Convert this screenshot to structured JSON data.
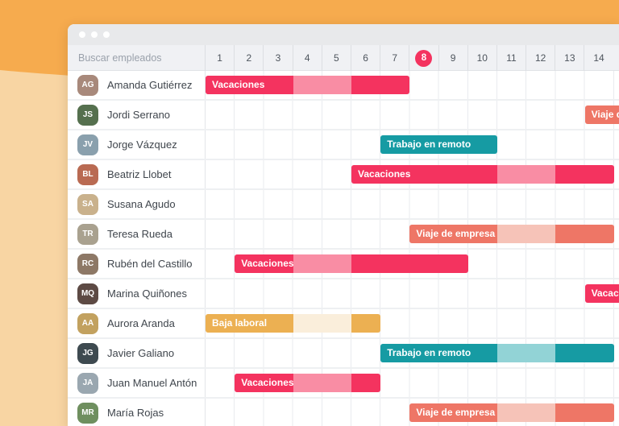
{
  "search": {
    "placeholder": "Buscar empleados"
  },
  "header": {
    "days": [
      "1",
      "2",
      "3",
      "4",
      "5",
      "6",
      "7",
      "8",
      "9",
      "10",
      "11",
      "12",
      "13",
      "14"
    ],
    "current_day": "8"
  },
  "legend_types": {
    "vacaciones": {
      "label": "Vacaciones",
      "dark": "#f4335f",
      "light": "#f98da4"
    },
    "viaje_de_empresa": {
      "label": "Viaje de empresa",
      "dark": "#ee7666",
      "light": "#f6c3b8"
    },
    "trabajo_en_remoto": {
      "label": "Trabajo en remoto",
      "dark": "#169ba3",
      "light": "#92d3d6"
    },
    "baja_laboral": {
      "label": "Baja laboral",
      "dark": "#ecb052",
      "light": "#faeedb"
    }
  },
  "colors": {
    "background_top": "#f6ab4e",
    "background_bottom": "#f8d5a3",
    "current_day_badge": "#f4335f"
  },
  "employees": [
    {
      "name": "Amanda Gutiérrez",
      "bar": {
        "type": "vacaciones",
        "label": "Vacaciones",
        "segments": [
          {
            "from": 1,
            "to": 3,
            "shade": "dark"
          },
          {
            "from": 4,
            "to": 5,
            "shade": "light"
          },
          {
            "from": 6,
            "to": 7,
            "shade": "dark"
          }
        ]
      }
    },
    {
      "name": "Jordi Serrano",
      "bar": {
        "type": "viaje_de_empresa",
        "label": "Viaje de empresa",
        "segments": [
          {
            "from": 14,
            "to": 15,
            "shade": "dark"
          }
        ]
      }
    },
    {
      "name": "Jorge Vázquez",
      "bar": {
        "type": "trabajo_en_remoto",
        "label": "Trabajo en remoto",
        "segments": [
          {
            "from": 7,
            "to": 10,
            "shade": "dark"
          }
        ]
      }
    },
    {
      "name": "Beatriz Llobet",
      "bar": {
        "type": "vacaciones",
        "label": "Vacaciones",
        "segments": [
          {
            "from": 6,
            "to": 10,
            "shade": "dark"
          },
          {
            "from": 11,
            "to": 12,
            "shade": "light"
          },
          {
            "from": 13,
            "to": 14,
            "shade": "dark"
          }
        ]
      }
    },
    {
      "name": "Susana Agudo",
      "bar": null
    },
    {
      "name": "Teresa Rueda",
      "bar": {
        "type": "viaje_de_empresa",
        "label": "Viaje de empresa",
        "segments": [
          {
            "from": 8,
            "to": 10,
            "shade": "dark"
          },
          {
            "from": 11,
            "to": 12,
            "shade": "light"
          },
          {
            "from": 13,
            "to": 14,
            "shade": "dark"
          }
        ]
      }
    },
    {
      "name": "Rubén del Castillo",
      "bar": {
        "type": "vacaciones",
        "label": "Vacaciones",
        "segments": [
          {
            "from": 2,
            "to": 3,
            "shade": "dark"
          },
          {
            "from": 4,
            "to": 5,
            "shade": "light"
          },
          {
            "from": 6,
            "to": 9,
            "shade": "dark"
          }
        ]
      }
    },
    {
      "name": "Marina Quiñones",
      "bar": {
        "type": "vacaciones",
        "label": "Vacaciones",
        "segments": [
          {
            "from": 14,
            "to": 15,
            "shade": "dark"
          }
        ]
      }
    },
    {
      "name": "Aurora Aranda",
      "bar": {
        "type": "baja_laboral",
        "label": "Baja laboral",
        "segments": [
          {
            "from": 1,
            "to": 3,
            "shade": "dark"
          },
          {
            "from": 4,
            "to": 5,
            "shade": "light"
          },
          {
            "from": 6,
            "to": 6,
            "shade": "dark"
          }
        ]
      }
    },
    {
      "name": "Javier Galiano",
      "bar": {
        "type": "trabajo_en_remoto",
        "label": "Trabajo en remoto",
        "segments": [
          {
            "from": 7,
            "to": 10,
            "shade": "dark"
          },
          {
            "from": 11,
            "to": 12,
            "shade": "light"
          },
          {
            "from": 13,
            "to": 14,
            "shade": "dark"
          }
        ]
      }
    },
    {
      "name": "Juan Manuel Antón",
      "bar": {
        "type": "vacaciones",
        "label": "Vacaciones",
        "segments": [
          {
            "from": 2,
            "to": 3,
            "shade": "dark"
          },
          {
            "from": 4,
            "to": 5,
            "shade": "light"
          },
          {
            "from": 6,
            "to": 6,
            "shade": "dark"
          }
        ]
      }
    },
    {
      "name": "María Rojas",
      "bar": {
        "type": "viaje_de_empresa",
        "label": "Viaje de empresa",
        "segments": [
          {
            "from": 8,
            "to": 10,
            "shade": "dark"
          },
          {
            "from": 11,
            "to": 12,
            "shade": "light"
          },
          {
            "from": 13,
            "to": 14,
            "shade": "dark"
          }
        ]
      }
    }
  ]
}
